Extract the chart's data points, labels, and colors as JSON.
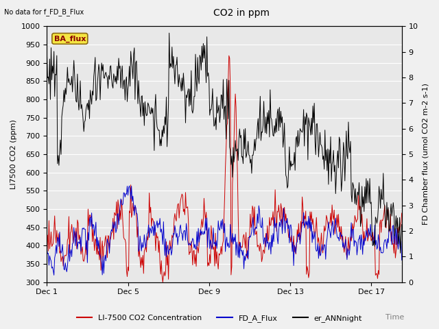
{
  "title": "CO2 in ppm",
  "no_data_text": "No data for f_FD_B_Flux",
  "ba_flux_label": "BA_flux",
  "xlabel": "Time",
  "ylabel_left": "LI7500 CO2 (ppm)",
  "ylabel_right": "FD Chamber flux (umol CO2 m-2 s-1)",
  "ylim_left": [
    300,
    1000
  ],
  "ylim_right": [
    0.0,
    10.0
  ],
  "xtick_positions": [
    0,
    4,
    8,
    12,
    16
  ],
  "xtick_labels": [
    "Dec 1",
    "Dec 5",
    "Dec 9",
    "Dec 13",
    "Dec 17"
  ],
  "yticks_left": [
    300,
    350,
    400,
    450,
    500,
    550,
    600,
    650,
    700,
    750,
    800,
    850,
    900,
    950,
    1000
  ],
  "yticks_right": [
    0.0,
    1.0,
    2.0,
    3.0,
    4.0,
    5.0,
    6.0,
    7.0,
    8.0,
    9.0,
    10.0
  ],
  "legend_labels": [
    "LI-7500 CO2 Concentration",
    "FD_A_Flux",
    "er_ANNnight"
  ],
  "legend_colors": [
    "#cc0000",
    "#0000cc",
    "#000000"
  ],
  "bg_color": "#e8e8e8",
  "fig_bg_color": "#f0f0f0",
  "grid_color": "#ffffff",
  "xlim": [
    0,
    17.5
  ],
  "n_points": 500,
  "title_fontsize": 10,
  "label_fontsize": 8,
  "tick_fontsize": 8,
  "legend_fontsize": 8
}
